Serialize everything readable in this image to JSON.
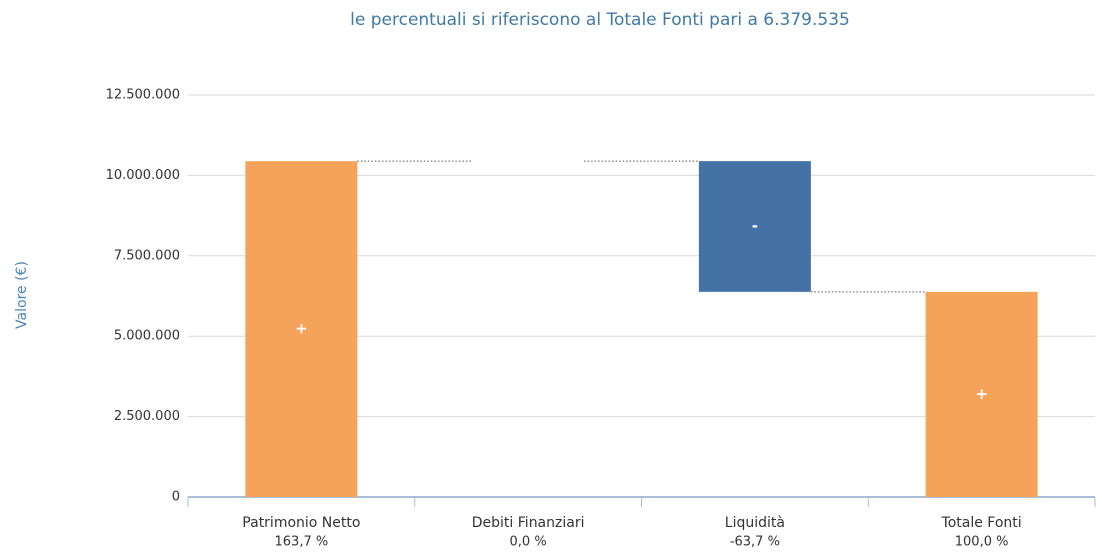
{
  "chart_data": {
    "type": "waterfall",
    "title": "le percentuali si riferiscono al Totale Fonti pari a 6.379.535",
    "y_label": "Valore (€)",
    "categories": [
      "Patrimonio Netto",
      "Debiti Finanziari",
      "Liquidità",
      "Totale Fonti"
    ],
    "sublabels": [
      "163,7 %",
      "0,0 %",
      "-63,7 %",
      "100,0 %"
    ],
    "values": [
      10443299,
      0,
      -4063764,
      6379535
    ],
    "is_total": [
      false,
      false,
      false,
      true
    ],
    "bar_signs": [
      "+",
      null,
      "-",
      "+"
    ],
    "positive_color": "#f5a35a",
    "negative_color": "#4471a6",
    "ylim": [
      0,
      12500000
    ],
    "yticks": [
      0,
      {
        "value": 2500000,
        "label": "2.500.000"
      },
      {
        "value": 5000000,
        "label": "5.000.000"
      },
      {
        "value": 7500000,
        "label": "7.500.000"
      },
      {
        "value": 10000000,
        "label": "10.000.000"
      },
      {
        "value": 12500000,
        "label": "12.500.000"
      }
    ],
    "grid": true
  }
}
